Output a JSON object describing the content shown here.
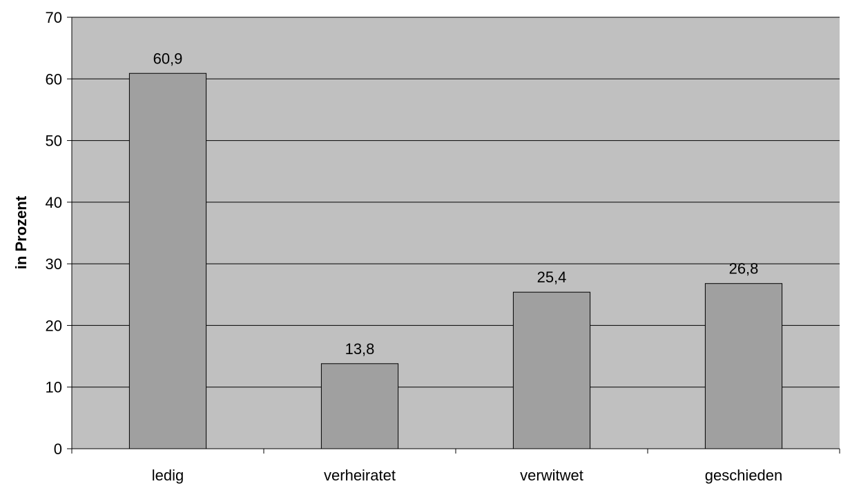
{
  "colors": {
    "plot_background": "#c0c0c0",
    "bar_fill": "#a0a0a0",
    "bar_stroke": "#000000",
    "gridline": "#000000",
    "axis": "#000000"
  },
  "chart_data": {
    "type": "bar",
    "title": "",
    "xlabel": "",
    "ylabel": "in Prozent",
    "categories": [
      "ledig",
      "verheiratet",
      "verwitwet",
      "geschieden"
    ],
    "values": [
      60.9,
      13.8,
      25.4,
      26.8
    ],
    "value_labels": [
      "60,9",
      "13,8",
      "25,4",
      "26,8"
    ],
    "ylim": [
      0,
      70
    ],
    "yticks": [
      0,
      10,
      20,
      30,
      40,
      50,
      60,
      70
    ],
    "ytick_labels": [
      "0",
      "10",
      "20",
      "30",
      "40",
      "50",
      "60",
      "70"
    ],
    "grid": true,
    "legend": "none"
  }
}
